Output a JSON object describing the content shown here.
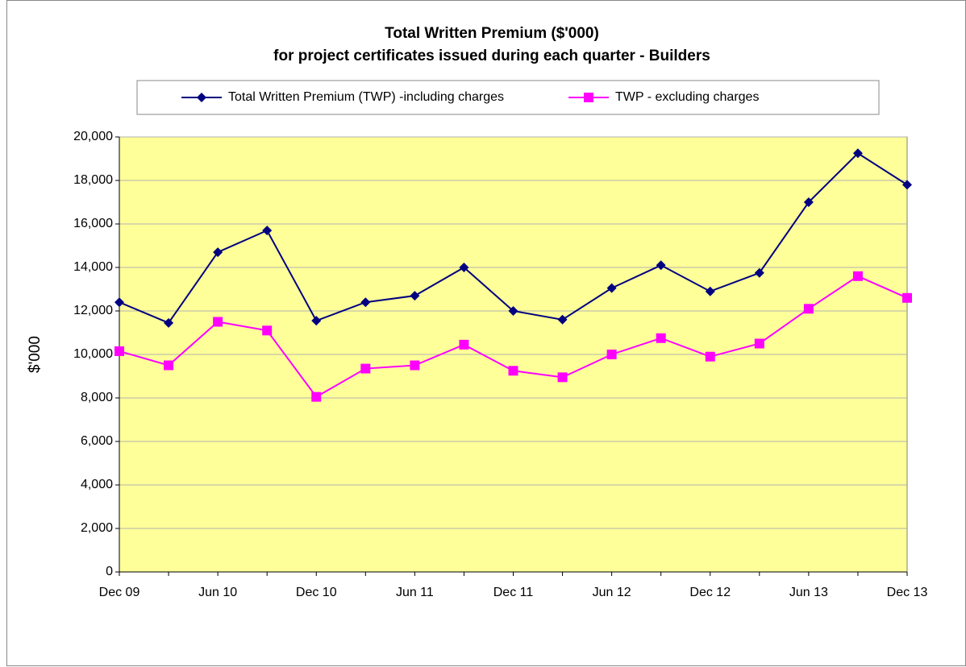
{
  "chart_data": {
    "type": "line",
    "title": [
      "Total Written Premium ($'000)",
      "for project certificates issued during each quarter - Builders"
    ],
    "y_label": "$'000",
    "categories": [
      "Dec 09",
      null,
      "Jun 10",
      null,
      "Dec 10",
      null,
      "Jun 11",
      null,
      "Dec 11",
      null,
      "Jun 12",
      null,
      "Dec 12",
      null,
      "Jun 13",
      null,
      "Dec 13"
    ],
    "series": [
      {
        "name": "Total Written Premium (TWP) -including charges",
        "color": "#000080",
        "marker": "diamond",
        "values": [
          12400,
          11450,
          14700,
          15700,
          11550,
          12400,
          12700,
          14000,
          12000,
          11600,
          13050,
          14100,
          12900,
          13750,
          17000,
          19250,
          17800
        ]
      },
      {
        "name": "TWP -  excluding charges",
        "color": "#ff00ff",
        "marker": "square",
        "values": [
          10150,
          9500,
          11500,
          11100,
          8050,
          9350,
          9500,
          10450,
          9250,
          8950,
          10000,
          10750,
          9900,
          10500,
          12100,
          13600,
          12600
        ]
      }
    ],
    "ylim": [
      0,
      20000
    ],
    "yticks": [
      0,
      {
        "value": 2000,
        "label": "2,000"
      },
      {
        "value": 4000,
        "label": "4,000"
      },
      {
        "value": 6000,
        "label": "6,000"
      },
      {
        "value": 8000,
        "label": "8,000"
      },
      {
        "value": 10000,
        "label": "10,000"
      },
      {
        "value": 12000,
        "label": "12,000"
      },
      {
        "value": 14000,
        "label": "14,000"
      },
      {
        "value": 16000,
        "label": "16,000"
      },
      {
        "value": 18000,
        "label": "18,000"
      },
      {
        "value": 20000,
        "label": "20,000"
      }
    ],
    "grid": true,
    "legend": "top",
    "plot_background": "#ffff99"
  }
}
